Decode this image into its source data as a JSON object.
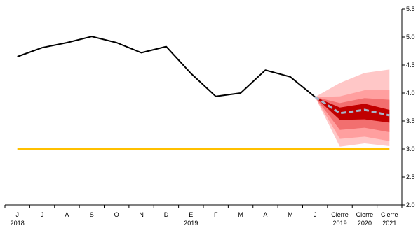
{
  "chart_data": {
    "type": "line",
    "categories": [
      "J",
      "J",
      "A",
      "S",
      "O",
      "N",
      "D",
      "E",
      "F",
      "M",
      "A",
      "M",
      "J",
      "Cierre",
      "Cierre",
      "Cierre"
    ],
    "category_years": [
      "2018",
      "",
      "",
      "",
      "",
      "",
      "",
      "2019",
      "",
      "",
      "",
      "",
      "",
      "2019",
      "2020",
      "2021"
    ],
    "series": [
      {
        "type": "line",
        "color": "#000000",
        "values": [
          4.65,
          4.81,
          4.9,
          5.01,
          4.9,
          4.72,
          4.83,
          4.35,
          3.94,
          4.0,
          4.41,
          4.29,
          3.93,
          null,
          null,
          null
        ]
      },
      {
        "type": "line",
        "color": "#ffc000",
        "values": [
          3.0,
          3.0,
          3.0,
          3.0,
          3.0,
          3.0,
          3.0,
          3.0,
          3.0,
          3.0,
          3.0,
          3.0,
          3.0,
          3.0,
          3.0,
          3.0
        ]
      },
      {
        "type": "dashed-line",
        "color": "#a6b4c8",
        "values": [
          null,
          null,
          null,
          null,
          null,
          null,
          null,
          null,
          null,
          null,
          null,
          null,
          3.93,
          3.64,
          3.7,
          3.6
        ]
      }
    ],
    "fan_bands": {
      "start_index": 12,
      "start_value": 3.93,
      "bands": [
        {
          "color": "#ffc7c7",
          "upper": [
            4.18,
            4.36,
            4.42
          ],
          "lower": [
            3.04,
            3.1,
            3.05
          ]
        },
        {
          "color": "#ff9f9f",
          "upper": [
            3.94,
            4.05,
            4.05
          ],
          "lower": [
            3.18,
            3.22,
            3.14
          ]
        },
        {
          "color": "#f26f6f",
          "upper": [
            3.82,
            3.91,
            3.88
          ],
          "lower": [
            3.34,
            3.38,
            3.3
          ]
        },
        {
          "color": "#c00000",
          "upper": [
            3.74,
            3.81,
            3.7
          ],
          "lower": [
            3.52,
            3.53,
            3.47
          ]
        }
      ]
    },
    "y_axis": {
      "position": "right",
      "min": 2.0,
      "max": 5.5,
      "ticks": [
        "2.0",
        "2.5",
        "3.0",
        "3.5",
        "4.0",
        "4.5",
        "5.0",
        "5.5"
      ]
    },
    "grid": false,
    "legend": "none"
  }
}
